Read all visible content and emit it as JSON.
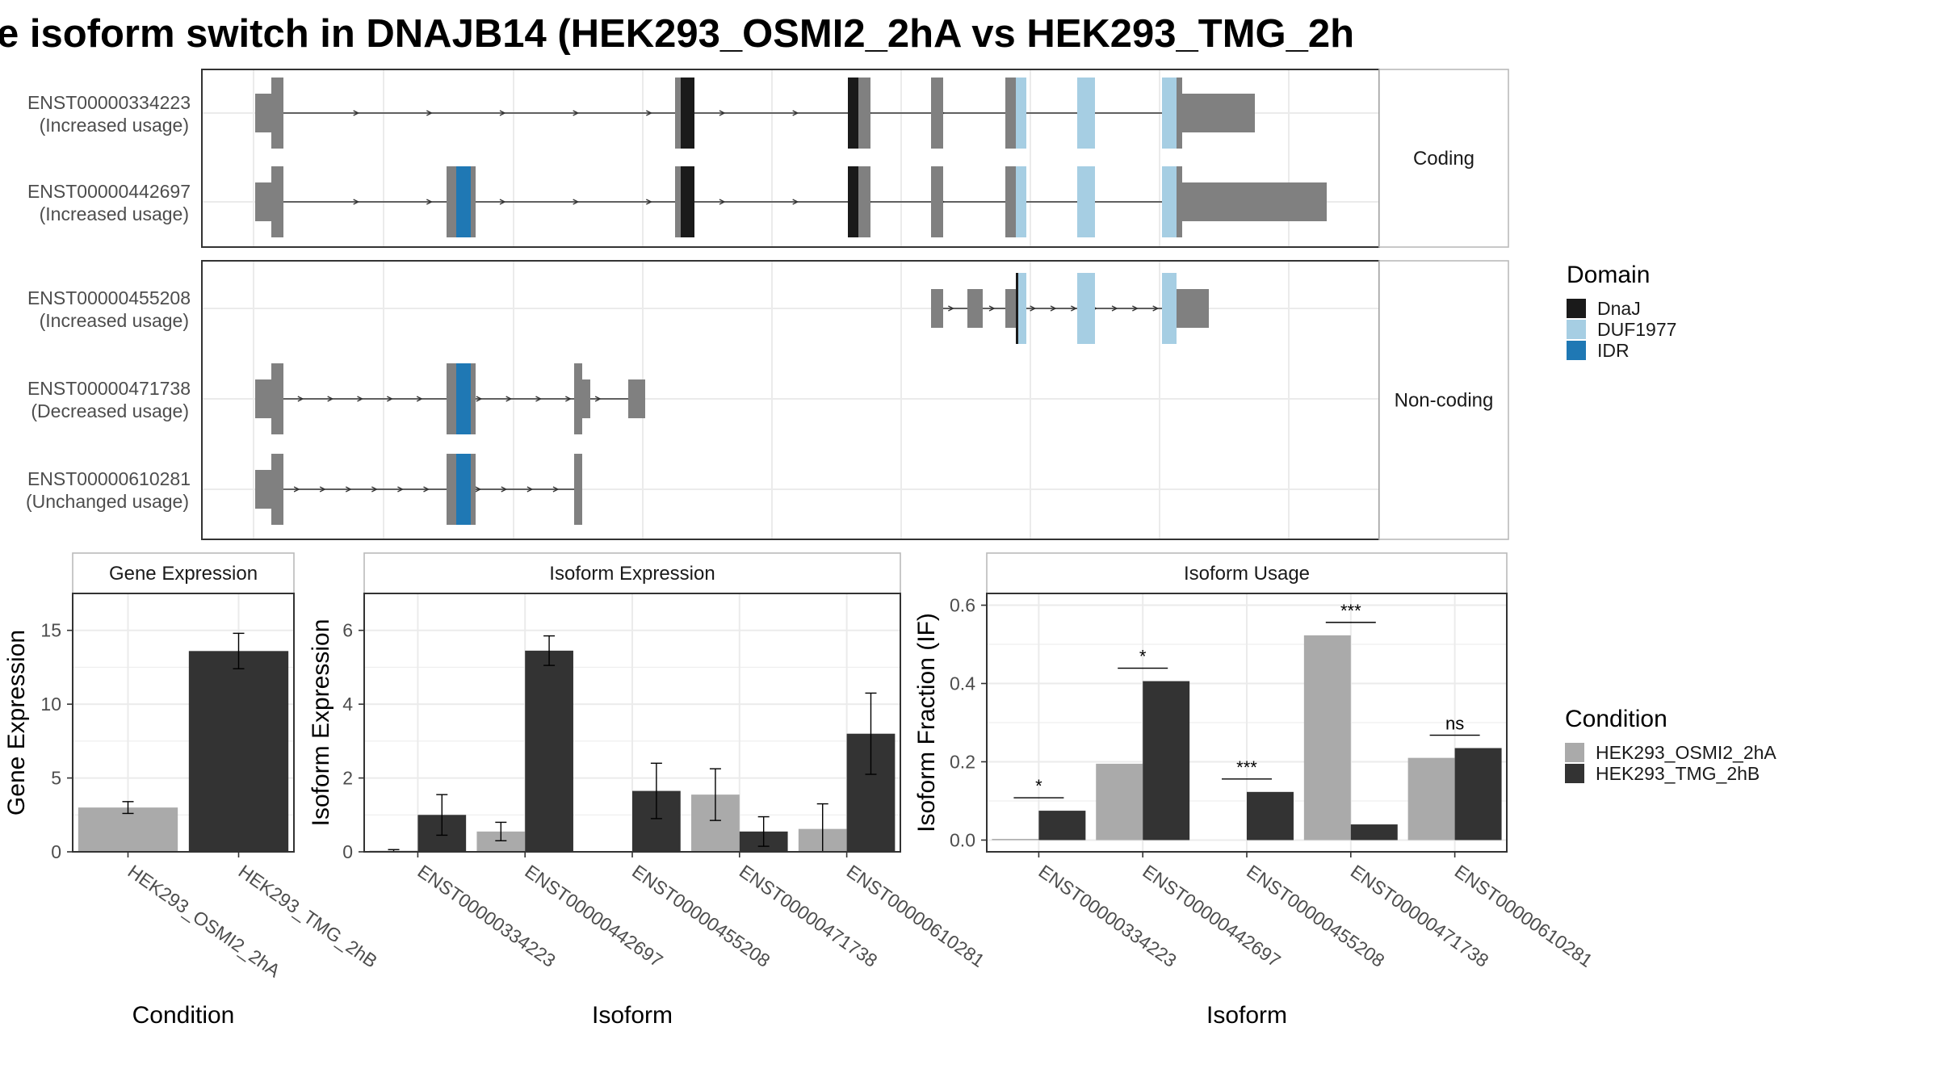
{
  "title": "e isoform switch in DNAJB14 (HEK293_OSMI2_2hA vs HEK293_TMG_2h",
  "colors": {
    "exon": "#808080",
    "DnaJ": "#1a1a1a",
    "DUF1977": "#a6cee3",
    "IDR": "#1f78b4",
    "cond_A": "#aaaaaa",
    "cond_B": "#333333",
    "grid": "#ebebeb"
  },
  "chart_data": [
    {
      "type": "gene-structure",
      "facets": [
        "Coding",
        "Non-coding"
      ],
      "legend": {
        "title": "Domain",
        "items": [
          "DnaJ",
          "DUF1977",
          "IDR"
        ]
      },
      "transcripts": [
        {
          "id": "ENST00000334223",
          "usage": "(Increased usage)",
          "facet": "Coding"
        },
        {
          "id": "ENST00000442697",
          "usage": "(Increased usage)",
          "facet": "Coding"
        },
        {
          "id": "ENST00000455208",
          "usage": "(Increased usage)",
          "facet": "Non-coding"
        },
        {
          "id": "ENST00000471738",
          "usage": "(Decreased usage)",
          "facet": "Non-coding"
        },
        {
          "id": "ENST00000610281",
          "usage": "(Unchanged usage)",
          "facet": "Non-coding"
        }
      ]
    },
    {
      "type": "bar",
      "title": "Gene Expression",
      "xlabel": "Condition",
      "ylabel": "Gene Expression",
      "ylim": [
        0,
        17.5
      ],
      "yticks": [
        0,
        5,
        10,
        15
      ],
      "categories": [
        "HEK293_OSMI2_2hA",
        "HEK293_TMG_2hB"
      ],
      "values": [
        3.0,
        13.6
      ],
      "errors": [
        [
          2.6,
          3.4
        ],
        [
          12.4,
          14.8
        ]
      ]
    },
    {
      "type": "bar",
      "title": "Isoform Expression",
      "xlabel": "Isoform",
      "ylabel": "Isoform Expression",
      "ylim": [
        0,
        7.0
      ],
      "yticks": [
        0,
        2,
        4,
        6
      ],
      "categories": [
        "ENST00000334223",
        "ENST00000442697",
        "ENST00000455208",
        "ENST00000471738",
        "ENST00000610281"
      ],
      "series": [
        {
          "name": "HEK293_OSMI2_2hA",
          "values": [
            0.03,
            0.55,
            0.0,
            1.55,
            0.62
          ],
          "errors": [
            [
              0.0,
              0.06
            ],
            [
              0.3,
              0.8
            ],
            [
              0.0,
              0.0
            ],
            [
              0.85,
              2.25
            ],
            [
              0.0,
              1.3
            ]
          ]
        },
        {
          "name": "HEK293_TMG_2hB",
          "values": [
            1.0,
            5.45,
            1.65,
            0.55,
            3.2
          ],
          "errors": [
            [
              0.45,
              1.55
            ],
            [
              5.05,
              5.85
            ],
            [
              0.9,
              2.4
            ],
            [
              0.15,
              0.95
            ],
            [
              2.1,
              4.3
            ]
          ]
        }
      ]
    },
    {
      "type": "bar",
      "title": "Isoform Usage",
      "xlabel": "Isoform",
      "ylabel": "Isoform Fraction (IF)",
      "ylim": [
        -0.03,
        0.63
      ],
      "yticks": [
        "0.0",
        "0.2",
        "0.4",
        "0.6"
      ],
      "categories": [
        "ENST00000334223",
        "ENST00000442697",
        "ENST00000455208",
        "ENST00000471738",
        "ENST00000610281"
      ],
      "series": [
        {
          "name": "HEK293_OSMI2_2hA",
          "values": [
            0.003,
            0.195,
            0.0,
            0.523,
            0.21
          ]
        },
        {
          "name": "HEK293_TMG_2hB",
          "values": [
            0.075,
            0.406,
            0.123,
            0.04,
            0.235
          ]
        }
      ],
      "significance": [
        "*",
        "*",
        "***",
        "***",
        "ns"
      ]
    }
  ],
  "condition_legend": {
    "title": "Condition",
    "items": [
      "HEK293_OSMI2_2hA",
      "HEK293_TMG_2hB"
    ]
  }
}
